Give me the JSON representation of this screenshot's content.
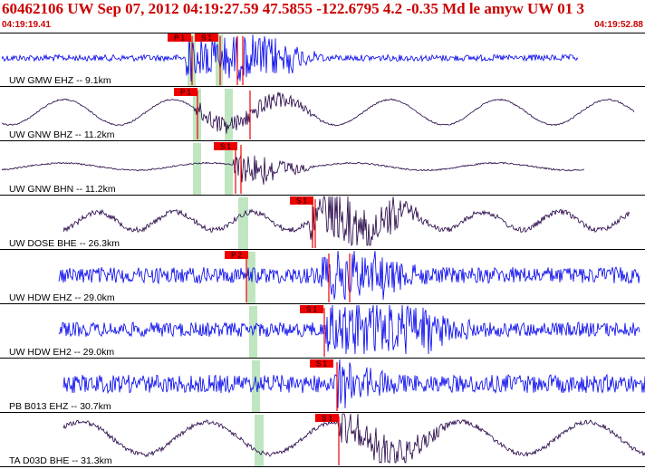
{
  "header": {
    "title": "60462106 UW Sep 07, 2012 04:19:27.59    47.5855 -122.6795  4.2 -0.35 Md le amyw UW 01   3",
    "start_time": "04:19:19.41",
    "end_time": "04:19:52.88"
  },
  "colors": {
    "header_text": "#cc0000",
    "pick_marker": "#ee0000",
    "trace_blue": "#0000ee",
    "trace_dark": "#220044",
    "window_band": "#bfe6c0"
  },
  "traces": [
    {
      "label": "UW GMW EHZ -- 9.1km",
      "color": "blue",
      "picks": [
        {
          "text": "P 1"
        },
        {
          "text": "S 1"
        }
      ]
    },
    {
      "label": "UW GNW BHZ -- 11.2km",
      "color": "dark",
      "picks": [
        {
          "text": "P 1"
        }
      ]
    },
    {
      "label": "UW GNW BHN -- 11.2km",
      "color": "dark",
      "picks": [
        {
          "text": "S 1"
        }
      ]
    },
    {
      "label": "UW DOSE BHE -- 26.3km",
      "color": "dark",
      "picks": [
        {
          "text": "S 1"
        }
      ]
    },
    {
      "label": "UW HDW EHZ -- 29.0km",
      "color": "blue",
      "picks": [
        {
          "text": "P 2"
        }
      ]
    },
    {
      "label": "UW HDW EH2 -- 29.0km",
      "color": "blue",
      "picks": [
        {
          "text": "S 1"
        }
      ]
    },
    {
      "label": "PB B013 EHZ -- 30.7km",
      "color": "blue",
      "picks": [
        {
          "text": "S 1"
        }
      ]
    },
    {
      "label": "TA D03D BHE -- 31.3km",
      "color": "dark",
      "picks": [
        {
          "text": "S 1"
        }
      ]
    }
  ]
}
